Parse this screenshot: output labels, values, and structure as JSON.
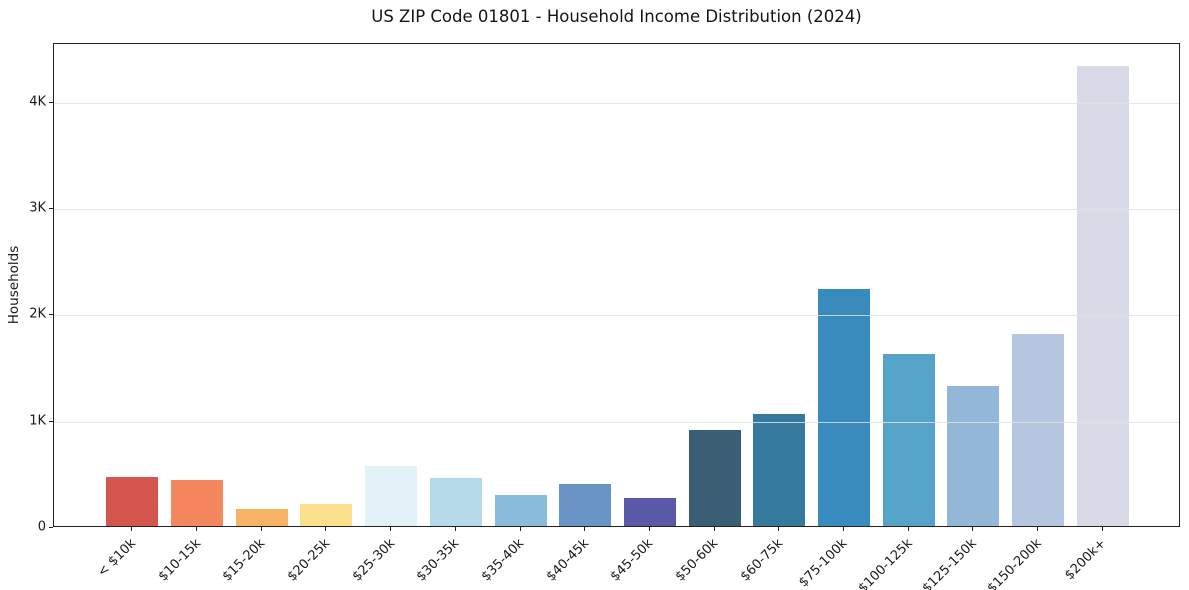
{
  "chart_data": {
    "type": "bar",
    "title": "US ZIP Code 01801 - Household Income Distribution (2024)",
    "xlabel": "",
    "ylabel": "Households",
    "categories": [
      "< $10k",
      "$10-15k",
      "$15-20k",
      "$20-25k",
      "$25-30k",
      "$30-35k",
      "$35-40k",
      "$40-45k",
      "$45-50k",
      "$50-60k",
      "$60-75k",
      "$75-100k",
      "$100-125k",
      "$125-150k",
      "$150-200k",
      "$200k+"
    ],
    "values": [
      460,
      430,
      160,
      205,
      560,
      450,
      295,
      395,
      260,
      905,
      1050,
      2230,
      1620,
      1320,
      1805,
      4320
    ],
    "bar_colors": [
      "#d4564f",
      "#f5875f",
      "#f8b266",
      "#fbe08d",
      "#e2f2f7",
      "#b7daea",
      "#89bbdb",
      "#6a93c6",
      "#5b58a8",
      "#3a5f75",
      "#357a9e",
      "#398bbd",
      "#55a3c8",
      "#92b7d7",
      "#b5c7e0",
      "#d8dae8"
    ],
    "ylim": [
      0,
      4550
    ],
    "yticks": [
      {
        "value": 0,
        "label": "0"
      },
      {
        "value": 1000,
        "label": "1K"
      },
      {
        "value": 2000,
        "label": "2K"
      },
      {
        "value": 3000,
        "label": "3K"
      },
      {
        "value": 4000,
        "label": "4K"
      }
    ],
    "grid": "horizontal",
    "legend_position": "none",
    "spine_color": "#222222",
    "grid_color": "#e2e2e2",
    "text_color": "#1a1a1a"
  }
}
